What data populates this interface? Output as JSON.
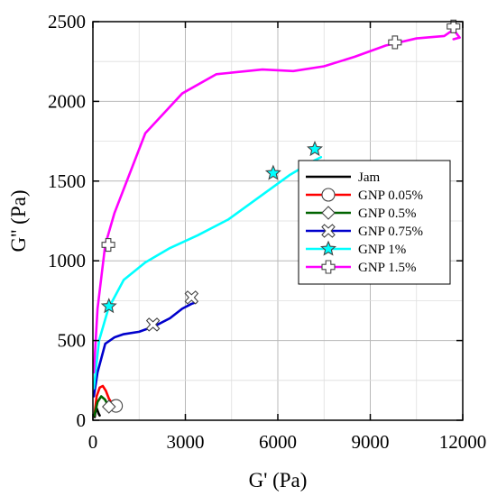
{
  "chart_data": {
    "type": "line",
    "title": "",
    "xlabel": "G' (Pa)",
    "ylabel": "G'' (Pa)",
    "xlim": [
      0,
      12000
    ],
    "ylim": [
      0,
      2500
    ],
    "xticks": [
      0,
      3000,
      6000,
      9000,
      12000
    ],
    "yticks": [
      0,
      500,
      1000,
      1500,
      2000,
      2500
    ],
    "xtick_labels": [
      "0",
      "3000",
      "6000",
      "9000",
      "12000"
    ],
    "ytick_labels": [
      "0",
      "500",
      "1000",
      "1500",
      "2000",
      "2500"
    ],
    "grid": true,
    "legend_position": "center-right",
    "series": [
      {
        "name": "Jam",
        "color": "#000000",
        "marker": "none",
        "points": [
          [
            60,
            20
          ],
          [
            80,
            50
          ],
          [
            110,
            80
          ],
          [
            150,
            60
          ],
          [
            190,
            40
          ],
          [
            220,
            30
          ]
        ],
        "markers": []
      },
      {
        "name": "GNP 0.05%",
        "color": "#ff0000",
        "marker": "circle",
        "points": [
          [
            50,
            30
          ],
          [
            120,
            150
          ],
          [
            220,
            205
          ],
          [
            320,
            215
          ],
          [
            420,
            185
          ],
          [
            520,
            135
          ],
          [
            620,
            105
          ],
          [
            750,
            90
          ]
        ],
        "markers": [
          [
            750,
            90
          ]
        ]
      },
      {
        "name": "GNP 0.5%",
        "color": "#006400",
        "marker": "diamond",
        "points": [
          [
            50,
            30
          ],
          [
            150,
            115
          ],
          [
            270,
            150
          ],
          [
            390,
            130
          ],
          [
            490,
            95
          ],
          [
            600,
            85
          ]
        ],
        "markers": [
          [
            520,
            85
          ]
        ]
      },
      {
        "name": "GNP 0.75%",
        "color": "#0000cc",
        "marker": "x",
        "points": [
          [
            30,
            150
          ],
          [
            150,
            300
          ],
          [
            400,
            480
          ],
          [
            700,
            520
          ],
          [
            1000,
            540
          ],
          [
            1500,
            555
          ],
          [
            2000,
            590
          ],
          [
            2500,
            640
          ],
          [
            2900,
            700
          ],
          [
            3200,
            730
          ],
          [
            3350,
            740
          ]
        ],
        "markers": [
          [
            1950,
            600
          ],
          [
            3200,
            770
          ]
        ]
      },
      {
        "name": "GNP 1%",
        "color": "#00ffff",
        "marker": "star",
        "points": [
          [
            30,
            200
          ],
          [
            200,
            500
          ],
          [
            500,
            700
          ],
          [
            1000,
            880
          ],
          [
            1700,
            990
          ],
          [
            2500,
            1080
          ],
          [
            3400,
            1160
          ],
          [
            4400,
            1260
          ],
          [
            5400,
            1400
          ],
          [
            6400,
            1540
          ],
          [
            7100,
            1620
          ],
          [
            7400,
            1650
          ]
        ],
        "markers": [
          [
            520,
            715
          ],
          [
            5850,
            1550
          ],
          [
            7200,
            1700
          ]
        ]
      },
      {
        "name": "GNP 1.5%",
        "color": "#ff00ff",
        "marker": "plus",
        "points": [
          [
            30,
            300
          ],
          [
            150,
            700
          ],
          [
            400,
            1100
          ],
          [
            700,
            1300
          ],
          [
            1000,
            1450
          ],
          [
            1700,
            1800
          ],
          [
            2900,
            2050
          ],
          [
            4000,
            2170
          ],
          [
            5500,
            2200
          ],
          [
            6500,
            2190
          ],
          [
            7500,
            2220
          ],
          [
            8500,
            2280
          ],
          [
            9500,
            2350
          ],
          [
            10500,
            2395
          ],
          [
            11400,
            2410
          ],
          [
            11700,
            2450
          ],
          [
            11900,
            2400
          ],
          [
            11700,
            2390
          ]
        ],
        "markers": [
          [
            500,
            1100
          ],
          [
            9800,
            2370
          ],
          [
            11700,
            2470
          ]
        ]
      }
    ]
  }
}
